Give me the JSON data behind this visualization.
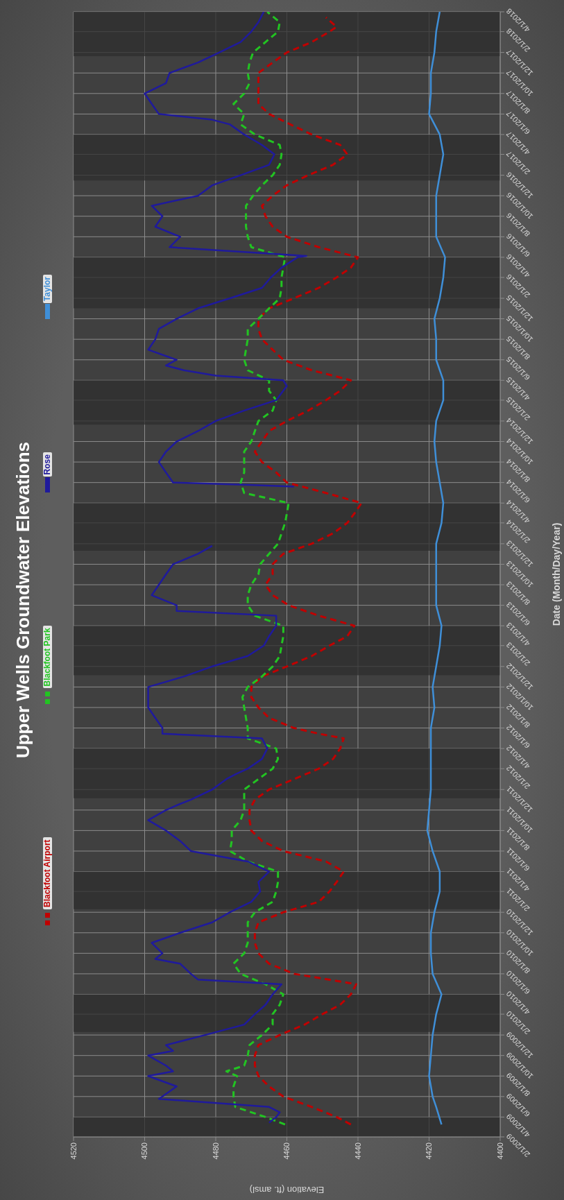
{
  "chart_data": {
    "type": "line",
    "title": "Upper Wells Groundwater Elevations",
    "orientation": "horizontal",
    "xlabel": "Elevation (ft. amsl)",
    "ylabel": "Date (Month/Day/Year)",
    "ylim": [
      "2009-02-01",
      "2018-04-01"
    ],
    "yticks": [
      {
        "value": "2009-02-01",
        "label": "2/1/2009"
      },
      {
        "value": "2009-04-01",
        "label": "4/1/2009"
      },
      {
        "value": "2009-06-01",
        "label": "6/1/2009"
      },
      {
        "value": "2009-08-01",
        "label": "8/1/2009"
      },
      {
        "value": "2009-10-01",
        "label": "10/1/2009"
      },
      {
        "value": "2009-12-01",
        "label": "12/1/2009"
      },
      {
        "value": "2010-02-01",
        "label": "2/1/2010"
      },
      {
        "value": "2010-04-01",
        "label": "4/1/2010"
      },
      {
        "value": "2010-06-01",
        "label": "6/1/2010"
      },
      {
        "value": "2010-08-01",
        "label": "8/1/2010"
      },
      {
        "value": "2010-10-01",
        "label": "10/1/2010"
      },
      {
        "value": "2010-12-01",
        "label": "12/1/2010"
      },
      {
        "value": "2011-02-01",
        "label": "2/1/2011"
      },
      {
        "value": "2011-04-01",
        "label": "4/1/2011"
      },
      {
        "value": "2011-06-01",
        "label": "6/1/2011"
      },
      {
        "value": "2011-08-01",
        "label": "8/1/2011"
      },
      {
        "value": "2011-10-01",
        "label": "10/1/2011"
      },
      {
        "value": "2011-12-01",
        "label": "12/1/2011"
      },
      {
        "value": "2012-02-01",
        "label": "2/1/2012"
      },
      {
        "value": "2012-04-01",
        "label": "4/1/2012"
      },
      {
        "value": "2012-06-01",
        "label": "6/1/2012"
      },
      {
        "value": "2012-08-01",
        "label": "8/1/2012"
      },
      {
        "value": "2012-10-01",
        "label": "10/1/2012"
      },
      {
        "value": "2012-12-01",
        "label": "12/1/2012"
      },
      {
        "value": "2013-02-01",
        "label": "2/1/2013"
      },
      {
        "value": "2013-04-01",
        "label": "4/1/2013"
      },
      {
        "value": "2013-06-01",
        "label": "6/1/2013"
      },
      {
        "value": "2013-08-01",
        "label": "8/1/2013"
      },
      {
        "value": "2013-10-01",
        "label": "10/1/2013"
      },
      {
        "value": "2013-12-01",
        "label": "12/1/2013"
      },
      {
        "value": "2014-02-01",
        "label": "2/1/2014"
      },
      {
        "value": "2014-04-01",
        "label": "4/1/2014"
      },
      {
        "value": "2014-06-01",
        "label": "6/1/2014"
      },
      {
        "value": "2014-08-01",
        "label": "8/1/2014"
      },
      {
        "value": "2014-10-01",
        "label": "10/1/2014"
      },
      {
        "value": "2014-12-01",
        "label": "12/1/2014"
      },
      {
        "value": "2015-02-01",
        "label": "2/1/2015"
      },
      {
        "value": "2015-04-01",
        "label": "4/1/2015"
      },
      {
        "value": "2015-06-01",
        "label": "6/1/2015"
      },
      {
        "value": "2015-08-01",
        "label": "8/1/2015"
      },
      {
        "value": "2015-10-01",
        "label": "10/1/2015"
      },
      {
        "value": "2015-12-01",
        "label": "12/1/2015"
      },
      {
        "value": "2016-02-01",
        "label": "2/1/2016"
      },
      {
        "value": "2016-04-01",
        "label": "4/1/2016"
      },
      {
        "value": "2016-06-01",
        "label": "6/1/2016"
      },
      {
        "value": "2016-08-01",
        "label": "8/1/2016"
      },
      {
        "value": "2016-10-01",
        "label": "10/1/2016"
      },
      {
        "value": "2016-12-01",
        "label": "12/1/2016"
      },
      {
        "value": "2017-02-01",
        "label": "2/1/2017"
      },
      {
        "value": "2017-04-01",
        "label": "4/1/2017"
      },
      {
        "value": "2017-06-01",
        "label": "6/1/2017"
      },
      {
        "value": "2017-08-01",
        "label": "8/1/2017"
      },
      {
        "value": "2017-10-01",
        "label": "10/1/2017"
      },
      {
        "value": "2017-12-01",
        "label": "12/1/2017"
      },
      {
        "value": "2018-02-01",
        "label": "2/1/2018"
      },
      {
        "value": "2018-04-01",
        "label": "4/1/2018"
      }
    ],
    "xlim": [
      4520,
      4400
    ],
    "xticks": [
      4520,
      4500,
      4480,
      4460,
      4440,
      4420,
      4400
    ],
    "grid": true,
    "legend": "left",
    "bands": [
      {
        "axis": "y",
        "from": "2009-02-01",
        "to": "2009-04-01",
        "color": "#2e2e2e"
      },
      {
        "axis": "y",
        "from": "2009-12-10",
        "to": "2010-04-01",
        "color": "#2e2e2e"
      },
      {
        "axis": "y",
        "from": "2010-12-10",
        "to": "2011-04-01",
        "color": "#2e2e2e"
      },
      {
        "axis": "y",
        "from": "2011-11-05",
        "to": "2012-04-01",
        "color": "#2e2e2e"
      },
      {
        "axis": "y",
        "from": "2012-11-05",
        "to": "2013-04-01",
        "color": "#2e2e2e"
      },
      {
        "axis": "y",
        "from": "2013-11-10",
        "to": "2014-04-01",
        "color": "#2e2e2e"
      },
      {
        "axis": "y",
        "from": "2014-11-20",
        "to": "2015-04-01",
        "color": "#2e2e2e"
      },
      {
        "axis": "y",
        "from": "2015-11-01",
        "to": "2016-04-01",
        "color": "#2e2e2e"
      },
      {
        "axis": "y",
        "from": "2016-11-15",
        "to": "2017-04-01",
        "color": "#2e2e2e"
      },
      {
        "axis": "y",
        "from": "2017-11-20",
        "to": "2018-04-01",
        "color": "#2e2e2e"
      }
    ],
    "series": [
      {
        "name": "Blackfoot Airport",
        "color": "#c00000",
        "line_style": "dashed",
        "x": [
          "2009-03-10",
          "2009-04-01",
          "2009-05-01",
          "2009-06-01",
          "2009-07-01",
          "2009-08-01",
          "2009-09-01",
          "2009-10-01",
          "2009-11-01",
          "2009-12-01",
          "2010-01-01",
          "2010-02-01",
          "2010-03-01",
          "2010-04-01",
          "2010-05-01",
          "2010-06-01",
          "2010-07-01",
          "2010-08-01",
          "2010-09-01",
          "2010-10-01",
          "2010-11-01",
          "2010-12-01",
          "2011-01-01",
          "2011-02-01",
          "2011-03-01",
          "2011-04-01",
          "2011-05-01",
          "2011-06-01",
          "2011-07-01",
          "2011-08-01",
          "2011-09-01",
          "2011-10-01",
          "2011-11-01",
          "2011-12-01",
          "2012-01-01",
          "2012-02-01",
          "2012-03-01",
          "2012-04-01",
          "2012-05-01",
          "2012-05-15",
          "2012-06-01",
          "2012-07-01",
          "2012-08-01",
          "2012-09-01",
          "2012-10-01",
          "2012-11-01",
          "2012-12-01",
          "2013-01-01",
          "2013-02-01",
          "2013-03-01",
          "2013-04-01",
          "2013-05-01",
          "2013-06-01",
          "2013-07-01",
          "2013-08-01",
          "2013-09-01",
          "2013-10-01",
          "2013-11-01",
          "2013-12-01",
          "2014-01-01",
          "2014-02-01",
          "2014-03-01",
          "2014-04-01",
          "2014-05-01",
          "2014-06-01",
          "2014-07-01",
          "2014-08-01",
          "2014-09-01",
          "2014-10-01",
          "2014-11-01",
          "2014-12-01",
          "2015-01-01",
          "2015-02-01",
          "2015-03-01",
          "2015-04-01",
          "2015-05-01",
          "2015-06-01",
          "2015-07-01",
          "2015-08-01",
          "2015-09-01",
          "2015-10-01",
          "2015-11-01",
          "2015-12-01",
          "2016-01-01",
          "2016-02-01",
          "2016-03-01",
          "2016-04-01",
          "2016-05-01",
          "2016-06-01",
          "2016-07-01",
          "2016-08-01",
          "2016-09-01",
          "2016-10-01",
          "2016-11-01",
          "2016-12-01",
          "2017-01-01",
          "2017-02-01",
          "2017-03-01",
          "2017-04-01",
          "2017-05-01",
          "2017-06-01",
          "2017-07-01",
          "2017-08-01",
          "2017-09-01",
          "2017-10-01",
          "2017-11-01",
          "2017-12-01",
          "2018-01-01",
          "2018-02-01",
          "2018-02-15",
          "2018-03-15"
        ],
        "values": [
          4442,
          4446,
          4453,
          4461,
          4465,
          4468,
          4469,
          4469,
          4468,
          4462,
          4455,
          4450,
          4445,
          4442,
          4440.5,
          4458,
          4465,
          4468,
          4469,
          4469,
          4468,
          4461,
          4451,
          4448,
          4446,
          4444,
          4449,
          4461,
          4467,
          4470,
          4470.5,
          4470.5,
          4469,
          4465,
          4458,
          4451,
          4447,
          4445,
          4444,
          4451,
          4458,
          4465,
          4468,
          4470,
          4470,
          4467,
          4460,
          4453,
          4448,
          4443,
          4441,
          4451,
          4459.5,
          4464,
          4466,
          4464,
          4464,
          4461,
          4453,
          4447,
          4443,
          4441,
          4439,
          4449,
          4460,
          4463,
          4467,
          4469,
          4467,
          4465,
          4460,
          4454,
          4449,
          4445,
          4442,
          4453,
          4461,
          4464,
          4467,
          4468,
          4468,
          4465,
          4458,
          4451,
          4446,
          4442,
          4440,
          4451,
          4460,
          4464,
          4466,
          4467,
          4464,
          4460,
          4454,
          4447,
          4443,
          4445,
          4453,
          4459,
          4465,
          4468,
          4468,
          4468,
          4468,
          4464,
          4460,
          4453,
          4448,
          4446,
          4449
        ]
      },
      {
        "name": "Blackfoot Park",
        "color": "#22c422",
        "line_style": "dashed",
        "x": [
          "2009-03-10",
          "2009-04-01",
          "2009-05-01",
          "2009-06-01",
          "2009-07-01",
          "2009-08-01",
          "2009-08-15",
          "2009-09-01",
          "2009-10-01",
          "2009-11-01",
          "2009-12-01",
          "2010-01-01",
          "2010-02-01",
          "2010-03-01",
          "2010-04-01",
          "2010-05-01",
          "2010-06-01",
          "2010-07-01",
          "2010-08-01",
          "2010-09-01",
          "2010-10-01",
          "2010-11-01",
          "2010-12-01",
          "2011-01-01",
          "2011-02-01",
          "2011-03-01",
          "2011-04-01",
          "2011-05-01",
          "2011-06-01",
          "2011-07-01",
          "2011-08-01",
          "2011-09-01",
          "2011-10-01",
          "2011-11-01",
          "2011-12-01",
          "2012-01-01",
          "2012-02-01",
          "2012-03-01",
          "2012-04-01",
          "2012-05-01",
          "2012-06-01",
          "2012-07-01",
          "2012-08-01",
          "2012-09-01",
          "2012-10-01",
          "2012-11-01",
          "2012-12-01",
          "2013-01-01",
          "2013-02-01",
          "2013-03-01",
          "2013-04-01",
          "2013-05-01",
          "2013-06-01",
          "2013-07-01",
          "2013-08-01",
          "2013-09-01",
          "2013-10-01",
          "2013-11-01",
          "2013-12-01",
          "2014-01-01",
          "2014-02-01",
          "2014-03-01",
          "2014-04-01",
          "2014-05-01",
          "2014-06-01",
          "2014-07-01",
          "2014-08-01",
          "2014-09-01",
          "2014-10-01",
          "2014-11-01",
          "2014-12-01",
          "2015-01-01",
          "2015-02-01",
          "2015-03-01",
          "2015-04-01",
          "2015-05-01",
          "2015-06-01",
          "2015-07-01",
          "2015-08-01",
          "2015-09-01",
          "2015-10-01",
          "2015-11-01",
          "2015-12-01",
          "2016-01-01",
          "2016-02-01",
          "2016-03-01",
          "2016-04-01",
          "2016-05-01",
          "2016-06-01",
          "2016-07-01",
          "2016-08-01",
          "2016-09-01",
          "2016-10-01",
          "2016-11-01",
          "2016-12-01",
          "2017-01-01",
          "2017-02-01",
          "2017-03-01",
          "2017-04-01",
          "2017-05-01",
          "2017-06-01",
          "2017-07-01",
          "2017-08-01",
          "2017-09-01",
          "2017-10-01",
          "2017-11-01",
          "2017-12-01",
          "2018-01-01",
          "2018-02-01",
          "2018-03-01",
          "2018-04-01"
        ],
        "values": [
          4460.5,
          4466,
          4474.5,
          4475,
          4475,
          4474,
          4477,
          4472,
          4471,
          4470.5,
          4467,
          4464,
          4464,
          4462,
          4461,
          4466,
          4473,
          4475,
          4472,
          4471,
          4471,
          4471,
          4469,
          4464,
          4463,
          4462.5,
          4462.5,
          4471,
          4476,
          4475.5,
          4475.5,
          4473,
          4472,
          4472,
          4472,
          4468,
          4464,
          4462.5,
          4463,
          4471,
          4471,
          4471.5,
          4472,
          4472.5,
          4471,
          4467,
          4464,
          4462,
          4461.5,
          4461,
          4461,
          4469,
          4471,
          4471,
          4470,
          4468,
          4467.5,
          4465,
          4462.5,
          4461.5,
          4460.5,
          4460,
          4459.5,
          4472,
          4473,
          4472,
          4472,
          4472,
          4470,
          4469,
          4468,
          4464,
          4463,
          4465,
          4465,
          4471,
          4472,
          4471.5,
          4471,
          4471,
          4468,
          4465,
          4462,
          4461.5,
          4461.5,
          4461,
          4460.5,
          4470,
          4471,
          4471.5,
          4471.5,
          4471.5,
          4469.5,
          4467,
          4464,
          4462,
          4461.5,
          4462,
          4469,
          4473,
          4472,
          4475,
          4472,
          4470.5,
          4471,
          4470.5,
          4469.5,
          4466,
          4462.5,
          4462,
          4465.5
        ]
      },
      {
        "name": "Rose",
        "color": "#1f1a9c",
        "line_style": "solid",
        "x": [
          "2009-03-15",
          "2009-04-01",
          "2009-04-15",
          "2009-05-01",
          "2009-05-25",
          "2009-06-01",
          "2009-07-01",
          "2009-08-01",
          "2009-08-15",
          "2009-09-01",
          "2009-10-01",
          "2009-10-15",
          "2009-11-01",
          "2009-12-01",
          "2010-01-01",
          "2010-02-01",
          "2010-03-01",
          "2010-04-01",
          "2010-05-01",
          "2010-05-15",
          "2010-06-01",
          "2010-07-01",
          "2010-07-15",
          "2010-08-01",
          "2010-09-01",
          "2010-10-01",
          "2010-11-01",
          "2010-12-01",
          "2011-01-01",
          "2011-02-01",
          "2011-03-01",
          "2011-04-01",
          "2011-05-01",
          "2011-06-01",
          "2011-07-01",
          "2011-08-01",
          "2011-09-01",
          "2011-10-01",
          "2011-10-15",
          "2011-11-01",
          "2011-12-01",
          "2012-01-01",
          "2012-01-15",
          "2012-02-01",
          "2012-03-01",
          "2012-04-01",
          "2012-05-01",
          "2012-05-15",
          "2012-06-01",
          "2012-07-01",
          "2012-08-01",
          "2012-09-01",
          "2012-10-01",
          "2012-11-01",
          "2012-12-01",
          "2013-01-01",
          "2013-02-01",
          "2013-03-01",
          "2013-04-01",
          "2013-05-01",
          "2013-05-15",
          "2013-06-01",
          "2013-07-01",
          "2013-08-01",
          "2013-09-01",
          "2013-10-01",
          "2013-11-01",
          "2013-11-25",
          "2014-02-01",
          "2014-05-20",
          "2014-05-25",
          "2014-06-01",
          "2014-07-01",
          "2014-08-01",
          "2014-09-01",
          "2014-10-01",
          "2014-11-01",
          "2014-12-01",
          "2015-01-01",
          "2015-02-01",
          "2015-03-01",
          "2015-03-15",
          "2015-04-01",
          "2015-04-15",
          "2015-05-01",
          "2015-05-15",
          "2015-06-01",
          "2015-07-01",
          "2015-08-01",
          "2015-09-01",
          "2015-10-01",
          "2015-11-01",
          "2015-12-01",
          "2016-01-01",
          "2016-02-01",
          "2016-03-01",
          "2016-04-01",
          "2016-04-05",
          "2016-05-01",
          "2016-06-01",
          "2016-07-01",
          "2016-08-01",
          "2016-09-01",
          "2016-10-01",
          "2016-11-01",
          "2016-12-01",
          "2017-01-01",
          "2017-02-01",
          "2017-03-01",
          "2017-04-01",
          "2017-05-01",
          "2017-05-15",
          "2017-06-01",
          "2017-07-01",
          "2017-08-01",
          "2017-09-01",
          "2017-10-01",
          "2017-11-01",
          "2017-12-01",
          "2018-01-01",
          "2018-02-01",
          "2018-03-01",
          "2018-04-01"
        ],
        "values": [
          4465,
          4463,
          4462,
          4465,
          4496,
          4495,
          4491,
          4499,
          4492,
          4494,
          4499,
          4492,
          4494,
          4483,
          4472,
          4469,
          4466,
          4464,
          4461.5,
          4485,
          4487,
          4490,
          4497,
          4495,
          4498,
          4490,
          4481,
          4476,
          4470,
          4467.5,
          4468,
          4465,
          4471,
          4487,
          4490,
          4494,
          4499,
          4494,
          4491,
          4487,
          4481,
          4477,
          4474.5,
          4471,
          4467,
          4465.5,
          4467,
          4495,
          4495,
          4497,
          4499,
          4499,
          4499,
          4489,
          4481,
          4471,
          4466.5,
          4465,
          4463,
          4463,
          4491,
          4491,
          4498,
          4496,
          4494,
          4492,
          4485,
          4481,
          null,
          4458,
          4471,
          4492,
          4494,
          4496,
          4494,
          4491,
          4485,
          4480,
          4472,
          4463,
          4461,
          4460,
          4461,
          4480,
          4489,
          4494,
          4491,
          4499,
          4497,
          4496,
          4491,
          4485,
          4476,
          4467,
          4464.5,
          4461.5,
          4457,
          4454.5,
          4493,
          4490,
          4497,
          4495,
          4498,
          4485,
          4481,
          4473,
          4465,
          4463.5,
          4467,
          4472,
          4476,
          4481,
          4496,
          4498,
          4500,
          4494,
          4493,
          4485,
          4479,
          4473,
          4470,
          4468,
          4466.5
        ]
      },
      {
        "name": "Taylor",
        "color": "#3f8fd8",
        "line_style": "solid",
        "x": [
          "2009-03-10",
          "2009-05-01",
          "2009-06-01",
          "2009-08-01",
          "2009-10-01",
          "2009-12-01",
          "2010-02-01",
          "2010-04-01",
          "2010-06-01",
          "2010-08-01",
          "2010-10-01",
          "2010-12-01",
          "2011-02-01",
          "2011-04-01",
          "2011-06-01",
          "2011-08-01",
          "2011-10-01",
          "2011-12-01",
          "2012-02-01",
          "2012-04-01",
          "2012-06-01",
          "2012-08-01",
          "2012-10-01",
          "2012-12-01",
          "2013-02-01",
          "2013-04-01",
          "2013-06-01",
          "2013-08-01",
          "2013-10-01",
          "2013-12-01",
          "2014-02-01",
          "2014-04-01",
          "2014-06-01",
          "2014-08-01",
          "2014-10-01",
          "2014-12-01",
          "2015-02-01",
          "2015-04-01",
          "2015-06-01",
          "2015-08-01",
          "2015-10-01",
          "2015-12-01",
          "2016-02-01",
          "2016-04-01",
          "2016-06-01",
          "2016-08-01",
          "2016-10-01",
          "2016-12-01",
          "2017-02-01",
          "2017-04-01",
          "2017-06-01",
          "2017-08-01",
          "2017-10-01",
          "2017-12-01",
          "2018-02-01",
          "2018-04-01"
        ],
        "values": [
          4416.5,
          4418,
          4419,
          4420,
          4419.5,
          4419,
          4418,
          4416.5,
          4419,
          4419.5,
          4419.5,
          4418.5,
          4417,
          4417,
          4419,
          4420.5,
          4420,
          4419.5,
          4419.5,
          4419.5,
          4419.5,
          4418.5,
          4419,
          4418,
          4417,
          4416.5,
          4418,
          4418,
          4418,
          4418,
          4416.5,
          4416,
          4417,
          4418,
          4418.5,
          4418,
          4416,
          4416,
          4418,
          4418,
          4418.5,
          4417,
          4416,
          4415.5,
          4418,
          4418,
          4418,
          4417,
          4416,
          4417,
          4420,
          4419.5,
          4419.5,
          4418.5,
          4418,
          4417
        ]
      }
    ]
  }
}
